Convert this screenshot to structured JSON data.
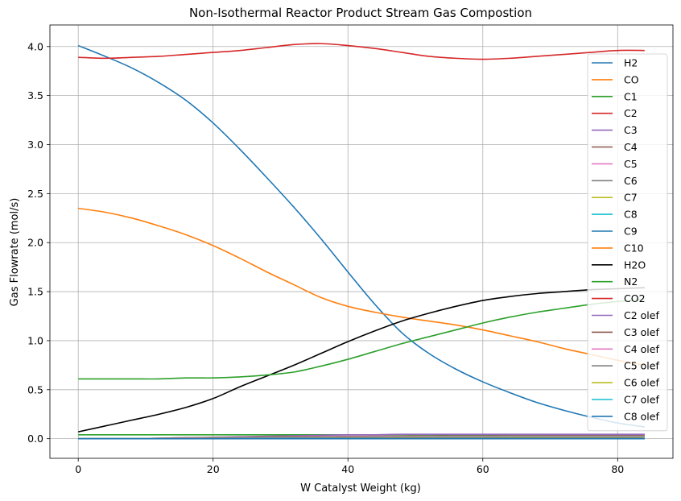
{
  "chart_data": {
    "type": "line",
    "title": "Non-Isothermal Reactor Product Stream Gas Compostion",
    "xlabel": "W Catalyst Weight (kg)",
    "ylabel": "Gas Flowrate (mol/s)",
    "xlim": [
      -4.2,
      88.2
    ],
    "ylim": [
      -0.2,
      4.22
    ],
    "xticks": [
      0,
      20,
      40,
      60,
      80
    ],
    "xtick_labels": [
      "0",
      "20",
      "40",
      "60",
      "80"
    ],
    "yticks": [
      0.0,
      0.5,
      1.0,
      1.5,
      2.0,
      2.5,
      3.0,
      3.5,
      4.0
    ],
    "ytick_labels": [
      "0.0",
      "0.5",
      "1.0",
      "1.5",
      "2.0",
      "2.5",
      "3.0",
      "3.5",
      "4.0"
    ],
    "grid": true,
    "legend_position": "right",
    "x": [
      0,
      4,
      8,
      12,
      16,
      20,
      24,
      28,
      32,
      36,
      40,
      44,
      48,
      52,
      56,
      60,
      64,
      68,
      72,
      76,
      80,
      84
    ],
    "series": [
      {
        "name": "H2",
        "color": "#1f77b4",
        "values": [
          4.01,
          3.9,
          3.78,
          3.63,
          3.45,
          3.22,
          2.95,
          2.66,
          2.36,
          2.04,
          1.7,
          1.37,
          1.08,
          0.87,
          0.71,
          0.58,
          0.47,
          0.37,
          0.29,
          0.22,
          0.16,
          0.12
        ]
      },
      {
        "name": "CO",
        "color": "#ff7f0e",
        "values": [
          2.35,
          2.31,
          2.25,
          2.17,
          2.08,
          1.97,
          1.84,
          1.7,
          1.57,
          1.44,
          1.35,
          1.29,
          1.24,
          1.2,
          1.16,
          1.11,
          1.05,
          0.99,
          0.92,
          0.86,
          0.8,
          0.75
        ]
      },
      {
        "name": "C1",
        "color": "#2ca02c",
        "values": [
          0.04,
          0.04,
          0.04,
          0.04,
          0.04,
          0.04,
          0.04,
          0.04,
          0.04,
          0.04,
          0.04,
          0.04,
          0.04,
          0.04,
          0.04,
          0.04,
          0.04,
          0.04,
          0.04,
          0.04,
          0.04,
          0.04
        ]
      },
      {
        "name": "C2",
        "color": "#d62728",
        "values": [
          3.89,
          3.88,
          3.89,
          3.9,
          3.92,
          3.94,
          3.96,
          3.99,
          4.02,
          4.03,
          4.01,
          3.98,
          3.94,
          3.9,
          3.88,
          3.87,
          3.88,
          3.9,
          3.92,
          3.94,
          3.96,
          3.96
        ]
      },
      {
        "name": "C3",
        "color": "#9467bd",
        "values": [
          0.0,
          0.0,
          0.0,
          0.005,
          0.01,
          0.015,
          0.02,
          0.025,
          0.03,
          0.035,
          0.04,
          0.04,
          0.045,
          0.045,
          0.045,
          0.045,
          0.045,
          0.045,
          0.045,
          0.045,
          0.045,
          0.045
        ]
      },
      {
        "name": "C4",
        "color": "#8c564b",
        "values": [
          0.0,
          0.0,
          0.0,
          0.005,
          0.01,
          0.012,
          0.015,
          0.018,
          0.02,
          0.022,
          0.024,
          0.025,
          0.026,
          0.027,
          0.028,
          0.028,
          0.029,
          0.029,
          0.03,
          0.03,
          0.03,
          0.03
        ]
      },
      {
        "name": "C5",
        "color": "#e377c2",
        "values": [
          0.0,
          0.0,
          0.0,
          0.003,
          0.006,
          0.009,
          0.012,
          0.014,
          0.016,
          0.018,
          0.02,
          0.021,
          0.022,
          0.023,
          0.024,
          0.024,
          0.025,
          0.025,
          0.025,
          0.025,
          0.025,
          0.025
        ]
      },
      {
        "name": "C6",
        "color": "#7f7f7f",
        "values": [
          0.0,
          0.0,
          0.0,
          0.002,
          0.004,
          0.006,
          0.008,
          0.01,
          0.012,
          0.013,
          0.014,
          0.015,
          0.016,
          0.017,
          0.017,
          0.018,
          0.018,
          0.018,
          0.018,
          0.018,
          0.018,
          0.018
        ]
      },
      {
        "name": "C7",
        "color": "#bcbd22",
        "values": [
          0.0,
          0.0,
          0.0,
          0.002,
          0.003,
          0.005,
          0.006,
          0.008,
          0.009,
          0.01,
          0.011,
          0.012,
          0.012,
          0.013,
          0.013,
          0.013,
          0.014,
          0.014,
          0.014,
          0.014,
          0.014,
          0.014
        ]
      },
      {
        "name": "C8",
        "color": "#17becf",
        "values": [
          0.0,
          0.0,
          0.0,
          0.001,
          0.002,
          0.004,
          0.005,
          0.006,
          0.007,
          0.008,
          0.008,
          0.009,
          0.009,
          0.01,
          0.01,
          0.01,
          0.01,
          0.01,
          0.01,
          0.01,
          0.01,
          0.01
        ]
      },
      {
        "name": "C9",
        "color": "#1f77b4",
        "values": [
          0.0,
          0.0,
          0.0,
          0.001,
          0.002,
          0.003,
          0.004,
          0.004,
          0.005,
          0.005,
          0.006,
          0.006,
          0.007,
          0.007,
          0.007,
          0.007,
          0.007,
          0.007,
          0.007,
          0.007,
          0.007,
          0.007
        ]
      },
      {
        "name": "C10",
        "color": "#ff7f0e",
        "values": [
          0.0,
          0.0,
          0.0,
          0.001,
          0.001,
          0.002,
          0.002,
          0.003,
          0.003,
          0.004,
          0.004,
          0.004,
          0.005,
          0.005,
          0.005,
          0.005,
          0.005,
          0.005,
          0.005,
          0.005,
          0.005,
          0.005
        ]
      },
      {
        "name": "H2O",
        "color": "#000000",
        "values": [
          0.07,
          0.13,
          0.19,
          0.25,
          0.32,
          0.41,
          0.53,
          0.64,
          0.75,
          0.87,
          0.99,
          1.1,
          1.2,
          1.28,
          1.35,
          1.41,
          1.45,
          1.48,
          1.5,
          1.52,
          1.53,
          1.54
        ]
      },
      {
        "name": "N2",
        "color": "#2ca02c",
        "values": [
          0.61,
          0.61,
          0.61,
          0.61,
          0.62,
          0.62,
          0.63,
          0.65,
          0.68,
          0.74,
          0.81,
          0.89,
          0.97,
          1.04,
          1.11,
          1.18,
          1.24,
          1.29,
          1.33,
          1.37,
          1.4,
          1.42
        ]
      },
      {
        "name": "CO2",
        "color": "#d62728",
        "values": [
          0.0,
          0.0,
          0.0,
          0.0,
          0.0,
          0.0,
          0.0,
          0.0,
          0.0,
          0.0,
          0.0,
          0.0,
          0.0,
          0.0,
          0.0,
          0.0,
          0.0,
          0.0,
          0.0,
          0.0,
          0.0,
          0.0
        ]
      },
      {
        "name": "C2 olef",
        "color": "#9467bd",
        "values": [
          0.0,
          0.0,
          0.0,
          0.0,
          0.0,
          0.0,
          0.0,
          0.0,
          0.0,
          0.0,
          0.0,
          0.0,
          0.0,
          0.0,
          0.0,
          0.0,
          0.0,
          0.0,
          0.0,
          0.0,
          0.0,
          0.0
        ]
      },
      {
        "name": "C3 olef",
        "color": "#8c564b",
        "values": [
          0.0,
          0.0,
          0.0,
          0.0,
          0.0,
          0.0,
          0.0,
          0.0,
          0.0,
          0.0,
          0.0,
          0.0,
          0.0,
          0.0,
          0.0,
          0.0,
          0.0,
          0.0,
          0.0,
          0.0,
          0.0,
          0.0
        ]
      },
      {
        "name": "C4 olef",
        "color": "#e377c2",
        "values": [
          0.0,
          0.0,
          0.0,
          0.0,
          0.0,
          0.0,
          0.0,
          0.0,
          0.0,
          0.0,
          0.0,
          0.0,
          0.0,
          0.0,
          0.0,
          0.0,
          0.0,
          0.0,
          0.0,
          0.0,
          0.0,
          0.0
        ]
      },
      {
        "name": "C5 olef",
        "color": "#7f7f7f",
        "values": [
          0.0,
          0.0,
          0.0,
          0.0,
          0.0,
          0.0,
          0.0,
          0.0,
          0.0,
          0.0,
          0.0,
          0.0,
          0.0,
          0.0,
          0.0,
          0.0,
          0.0,
          0.0,
          0.0,
          0.0,
          0.0,
          0.0
        ]
      },
      {
        "name": "C6 olef",
        "color": "#bcbd22",
        "values": [
          0.0,
          0.0,
          0.0,
          0.0,
          0.0,
          0.0,
          0.0,
          0.0,
          0.0,
          0.0,
          0.0,
          0.0,
          0.0,
          0.0,
          0.0,
          0.0,
          0.0,
          0.0,
          0.0,
          0.0,
          0.0,
          0.0
        ]
      },
      {
        "name": "C7 olef",
        "color": "#17becf",
        "values": [
          0.0,
          0.0,
          0.0,
          0.0,
          0.0,
          0.0,
          0.0,
          0.0,
          0.0,
          0.0,
          0.0,
          0.0,
          0.0,
          0.0,
          0.0,
          0.0,
          0.0,
          0.0,
          0.0,
          0.0,
          0.0,
          0.0
        ]
      },
      {
        "name": "C8 olef",
        "color": "#1f77b4",
        "values": [
          0.0,
          0.0,
          0.0,
          0.0,
          0.0,
          0.0,
          0.0,
          0.0,
          0.0,
          0.0,
          0.0,
          0.0,
          0.0,
          0.0,
          0.0,
          0.0,
          0.0,
          0.0,
          0.0,
          0.0,
          0.0,
          0.0
        ]
      }
    ]
  }
}
